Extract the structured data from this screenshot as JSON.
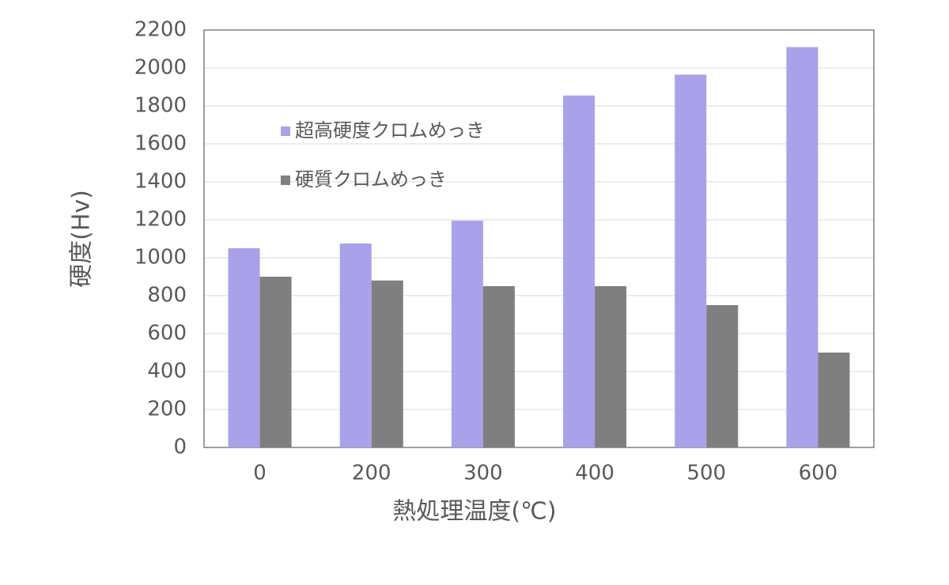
{
  "chart_data": {
    "type": "bar",
    "x_label": "熱処理温度(℃)",
    "y_label": "硬度(Hv)",
    "categories": [
      "0",
      "200",
      "300",
      "400",
      "500",
      "600"
    ],
    "series": [
      {
        "name": "超高硬度クロムめっき",
        "color": "#a9a1ea",
        "values": [
          1050,
          1075,
          1195,
          1855,
          1965,
          2110
        ]
      },
      {
        "name": "硬質クロムめっき",
        "color": "#7f7f7f",
        "values": [
          900,
          880,
          850,
          850,
          750,
          500
        ]
      }
    ],
    "ylim": [
      0,
      2200
    ],
    "yticks": [
      0,
      200,
      400,
      600,
      800,
      1000,
      1200,
      1400,
      1600,
      1800,
      2000,
      2200
    ],
    "grid": true,
    "legend": "upper left"
  }
}
